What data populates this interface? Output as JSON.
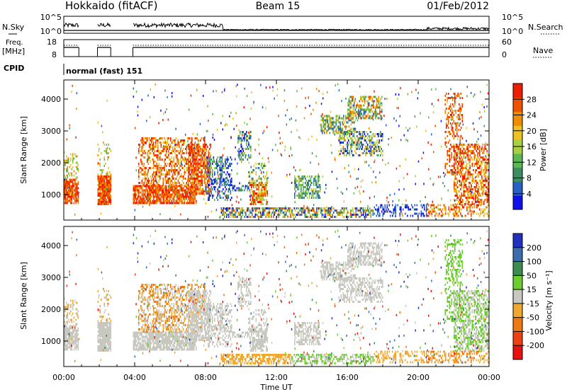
{
  "header": {
    "title_left": "Hokkaido (fitACF)",
    "title_center": "Beam 15",
    "title_right": "01/Feb/2012"
  },
  "panels": {
    "nsky_label": "N.Sky",
    "nsky_ticks": [
      "10^5",
      "10^0"
    ],
    "nsearch_label": "N.Search",
    "nsearch_ticks": [
      "10^5",
      "10^0"
    ],
    "freq_label_1": "Freq.",
    "freq_label_2": "[MHz]",
    "freq_ticks": [
      "18",
      "8"
    ],
    "nave_label": "Nave",
    "nave_ticks": [
      "60",
      "0"
    ],
    "cpid_label": "CPID",
    "cpid_text": "normal (fast) 151"
  },
  "chart_data": [
    {
      "type": "heatmap",
      "quantity": "Power",
      "ylabel": "Slant Range [km]",
      "ylim": [
        200,
        4600
      ],
      "yticks": [
        "1000",
        "2000",
        "3000",
        "4000"
      ],
      "colorbar_label": "Power [dB]",
      "colorbar_ticks": [
        "4",
        "8",
        "12",
        "16",
        "20",
        "24",
        "28"
      ],
      "colorbar_range": [
        0,
        32
      ],
      "colors": [
        "#1010ee",
        "#2860c8",
        "#3c8c64",
        "#5cb850",
        "#a8d040",
        "#f0c020",
        "#f08c00",
        "#f05000",
        "#f01c00"
      ],
      "xlim": [
        0,
        24
      ]
    },
    {
      "type": "heatmap",
      "quantity": "Velocity",
      "ylabel": "Slant Range [km]",
      "ylim": [
        200,
        4600
      ],
      "yticks": [
        "1000",
        "2000",
        "3000",
        "4000"
      ],
      "colorbar_label": "Velocity [m s⁻¹]",
      "colorbar_ticks": [
        "200",
        "100",
        "50",
        "15",
        "-15",
        "-50",
        "-100",
        "-200"
      ],
      "colors": [
        "#2030c0",
        "#3c6cb0",
        "#3c8c50",
        "#6ccc30",
        "#c8c8c0",
        "#f0a830",
        "#f07810",
        "#f04010",
        "#e81010"
      ],
      "xlim": [
        0,
        24
      ]
    }
  ],
  "xaxis": {
    "label": "Time UT",
    "ticks": [
      "00:00",
      "04:00",
      "08:00",
      "12:00",
      "16:00",
      "20:00",
      "00:00"
    ]
  }
}
